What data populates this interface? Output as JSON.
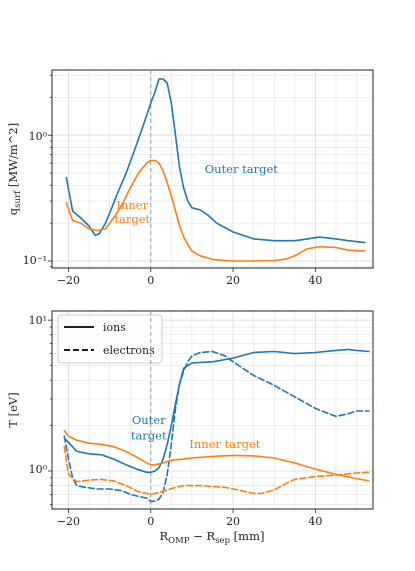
{
  "colors": {
    "blue": "#1f77b4",
    "orange": "#ff7f0e",
    "grid": "#dddddd",
    "vline": "#9a9a9a"
  },
  "chart_data": [
    {
      "type": "line",
      "scale": "log-y",
      "xlim": [
        -24,
        54
      ],
      "ylim": [
        0.088,
        3.3
      ],
      "grid": true,
      "ylabel": "q$_{surf}$ [MW/m$^2$]",
      "xticks": [
        -20,
        0,
        20,
        40
      ],
      "xtick_labels": [
        "−20",
        "0",
        "20",
        "40"
      ],
      "ytick_labels": [
        "10⁰",
        "10⁻¹"
      ],
      "vline_x": 0,
      "annotations": [
        {
          "text": "Outer target",
          "series": "outer",
          "x": 22,
          "y": 0.5
        },
        {
          "text": "Inner",
          "series": "inner",
          "x": -4.5,
          "y": 0.26
        },
        {
          "text": "target",
          "series": "inner",
          "x": -4.5,
          "y": 0.2
        }
      ],
      "series": [
        {
          "key": "outer",
          "color": "#1f77b4",
          "x": [
            -20.5,
            -19,
            -17,
            -15,
            -13.5,
            -12.5,
            -11,
            -10,
            -8,
            -6,
            -4,
            -2,
            0,
            1,
            2,
            3,
            4,
            5,
            6,
            7,
            8,
            9,
            10,
            11,
            12,
            14,
            16,
            20,
            25,
            30,
            35,
            38,
            41,
            45,
            48,
            52
          ],
          "y": [
            0.46,
            0.25,
            0.22,
            0.19,
            0.16,
            0.165,
            0.2,
            0.24,
            0.35,
            0.5,
            0.75,
            1.15,
            1.8,
            2.2,
            2.8,
            2.8,
            2.6,
            1.8,
            1.0,
            0.55,
            0.38,
            0.3,
            0.265,
            0.26,
            0.255,
            0.23,
            0.2,
            0.17,
            0.15,
            0.145,
            0.145,
            0.15,
            0.155,
            0.15,
            0.145,
            0.14
          ]
        },
        {
          "key": "inner",
          "color": "#ff7f0e",
          "x": [
            -20.5,
            -19,
            -17,
            -15,
            -13,
            -11,
            -9,
            -7,
            -5,
            -3,
            -1,
            0,
            1,
            2,
            3,
            4,
            5,
            6,
            7,
            8,
            9,
            10,
            12,
            15,
            18,
            20,
            25,
            30,
            33,
            35,
            38,
            41,
            45,
            48,
            52
          ],
          "y": [
            0.29,
            0.21,
            0.2,
            0.18,
            0.175,
            0.18,
            0.22,
            0.28,
            0.38,
            0.5,
            0.6,
            0.63,
            0.63,
            0.6,
            0.52,
            0.42,
            0.33,
            0.25,
            0.19,
            0.155,
            0.135,
            0.12,
            0.11,
            0.103,
            0.101,
            0.1,
            0.1,
            0.101,
            0.104,
            0.11,
            0.125,
            0.13,
            0.128,
            0.122,
            0.12
          ]
        }
      ]
    },
    {
      "type": "line",
      "scale": "log-y",
      "xlim": [
        -24,
        54
      ],
      "ylim": [
        0.56,
        11.5
      ],
      "grid": true,
      "xlabel": "R$_{\\mathrm{OMP}}$ − R$_{sep}$ [mm]",
      "ylabel": "T [eV]",
      "xticks": [
        -20,
        0,
        20,
        40
      ],
      "xtick_labels": [
        "−20",
        "0",
        "20",
        "40"
      ],
      "ytick_labels": [
        "10¹",
        "10⁰"
      ],
      "vline_x": 0,
      "legend": {
        "placement": "top-left",
        "entries": [
          {
            "label": "ions",
            "style": "solid"
          },
          {
            "label": "electrons",
            "style": "dashed"
          }
        ]
      },
      "annotations": [
        {
          "text": "Outer",
          "series": "outer",
          "x": -0.5,
          "y": 2.05
        },
        {
          "text": "target",
          "series": "outer",
          "x": -0.5,
          "y": 1.62
        },
        {
          "text": "Inner target",
          "series": "inner",
          "x": 18,
          "y": 1.42
        }
      ],
      "series": [
        {
          "key": "outer_ions",
          "series": "outer",
          "style": "solid",
          "color": "#1f77b4",
          "x": [
            -21,
            -20,
            -18,
            -15,
            -12,
            -9,
            -6,
            -3,
            -1,
            0,
            1,
            2,
            3,
            4,
            5,
            6,
            7,
            8,
            10,
            12,
            15,
            20,
            25,
            30,
            35,
            40,
            45,
            48,
            50,
            53
          ],
          "y": [
            1.65,
            1.55,
            1.35,
            1.3,
            1.28,
            1.2,
            1.1,
            1.02,
            0.98,
            0.98,
            1.0,
            1.05,
            1.2,
            1.5,
            2.0,
            2.8,
            3.8,
            4.8,
            5.2,
            5.25,
            5.3,
            5.6,
            6.1,
            6.2,
            6.0,
            6.1,
            6.3,
            6.4,
            6.3,
            6.2
          ]
        },
        {
          "key": "outer_electrons",
          "series": "outer",
          "style": "dashed",
          "color": "#1f77b4",
          "x": [
            -21,
            -20,
            -19,
            -18,
            -16,
            -13,
            -10,
            -7,
            -5,
            -3,
            -1,
            0,
            1,
            2,
            3,
            4,
            5,
            6,
            7,
            8,
            9,
            10,
            12,
            15,
            18,
            20,
            25,
            30,
            35,
            40,
            45,
            48,
            50,
            53
          ],
          "y": [
            1.7,
            1.2,
            0.9,
            0.8,
            0.78,
            0.76,
            0.76,
            0.74,
            0.7,
            0.68,
            0.66,
            0.63,
            0.63,
            0.65,
            0.72,
            0.95,
            1.5,
            2.6,
            3.8,
            4.6,
            5.3,
            5.8,
            6.1,
            6.2,
            5.8,
            5.3,
            4.3,
            3.7,
            3.1,
            2.6,
            2.3,
            2.4,
            2.5,
            2.5
          ]
        },
        {
          "key": "inner_ions",
          "series": "inner",
          "style": "solid",
          "color": "#ff7f0e",
          "x": [
            -21,
            -20,
            -18,
            -15,
            -12,
            -9,
            -6,
            -3,
            -1,
            0,
            1,
            3,
            5,
            8,
            10,
            15,
            20,
            25,
            30,
            35,
            40,
            45,
            50,
            53
          ],
          "y": [
            1.85,
            1.7,
            1.6,
            1.53,
            1.5,
            1.45,
            1.35,
            1.22,
            1.13,
            1.1,
            1.1,
            1.13,
            1.18,
            1.2,
            1.22,
            1.25,
            1.27,
            1.26,
            1.22,
            1.13,
            1.03,
            0.95,
            0.89,
            0.86
          ]
        },
        {
          "key": "inner_electrons",
          "series": "inner",
          "style": "dashed",
          "color": "#ff7f0e",
          "x": [
            -21,
            -20,
            -18,
            -15,
            -12,
            -9,
            -6,
            -3,
            -1,
            0,
            2,
            4,
            6,
            8,
            10,
            12,
            15,
            18,
            20,
            23,
            25,
            27,
            30,
            33,
            35,
            40,
            45,
            50,
            53
          ],
          "y": [
            1.45,
            0.95,
            0.85,
            0.87,
            0.88,
            0.86,
            0.8,
            0.73,
            0.71,
            0.7,
            0.72,
            0.75,
            0.78,
            0.8,
            0.8,
            0.8,
            0.79,
            0.78,
            0.76,
            0.73,
            0.71,
            0.71,
            0.75,
            0.83,
            0.88,
            0.92,
            0.94,
            0.97,
            0.98
          ]
        }
      ]
    }
  ]
}
